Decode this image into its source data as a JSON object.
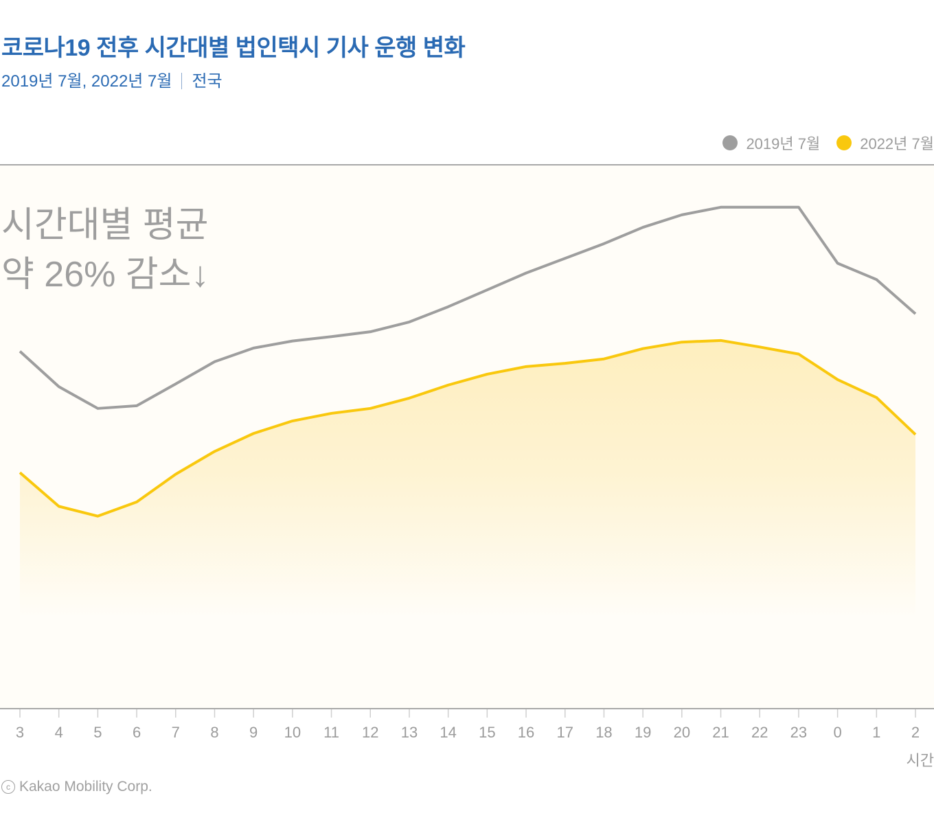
{
  "header": {
    "title": "코로나19 전후 시간대별 법인택시 기사 운행 변화",
    "subtitle_period": "2019년 7월, 2022년 7월",
    "subtitle_region": "전국"
  },
  "annotation": {
    "line1": "시간대별 평균",
    "line2": "약 26% 감소↓"
  },
  "credit": {
    "icon": "copyright-icon",
    "symbol": "c",
    "text": "Kakao Mobility Corp."
  },
  "colors": {
    "title": "#2a6ab3",
    "series_2019": "#9e9e9e",
    "series_2022": "#f9c80e",
    "area_fill": "#fdebb4",
    "background": "#fffdf8",
    "axis": "#a8a8a8"
  },
  "chart_data": {
    "type": "line",
    "title": "코로나19 전후 시간대별 법인택시 기사 운행 변화",
    "subtitle": "2019년 7월, 2022년 7월 | 전국",
    "xlabel": "시간",
    "ylabel": "",
    "y_axis_visible": false,
    "y_units": "relative index (no scale shown; 0 = baseline)",
    "ylim": [
      0,
      100
    ],
    "grid": false,
    "legend_position": "top-right",
    "categories": [
      "3",
      "4",
      "5",
      "6",
      "7",
      "8",
      "9",
      "10",
      "11",
      "12",
      "13",
      "14",
      "15",
      "16",
      "17",
      "18",
      "19",
      "20",
      "21",
      "22",
      "23",
      "0",
      "1",
      "2"
    ],
    "series": [
      {
        "name": "2019년 7월",
        "color": "#9e9e9e",
        "area": false,
        "values": [
          65.7,
          59.2,
          55.2,
          55.7,
          59.7,
          63.8,
          66.3,
          67.6,
          68.4,
          69.3,
          71.1,
          73.9,
          77.0,
          80.1,
          82.8,
          85.5,
          88.5,
          90.8,
          92.2,
          92.2,
          92.2,
          81.9,
          78.9,
          72.6
        ]
      },
      {
        "name": "2022년 7월",
        "color": "#f9c80e",
        "area": true,
        "values": [
          43.4,
          37.2,
          35.4,
          38.0,
          43.1,
          47.3,
          50.6,
          52.9,
          54.3,
          55.2,
          57.1,
          59.5,
          61.5,
          62.9,
          63.5,
          64.3,
          66.2,
          67.4,
          67.7,
          66.5,
          65.2,
          60.5,
          57.2,
          50.4
        ]
      }
    ],
    "annotations": [
      "시간대별 평균 약 26% 감소↓"
    ]
  }
}
